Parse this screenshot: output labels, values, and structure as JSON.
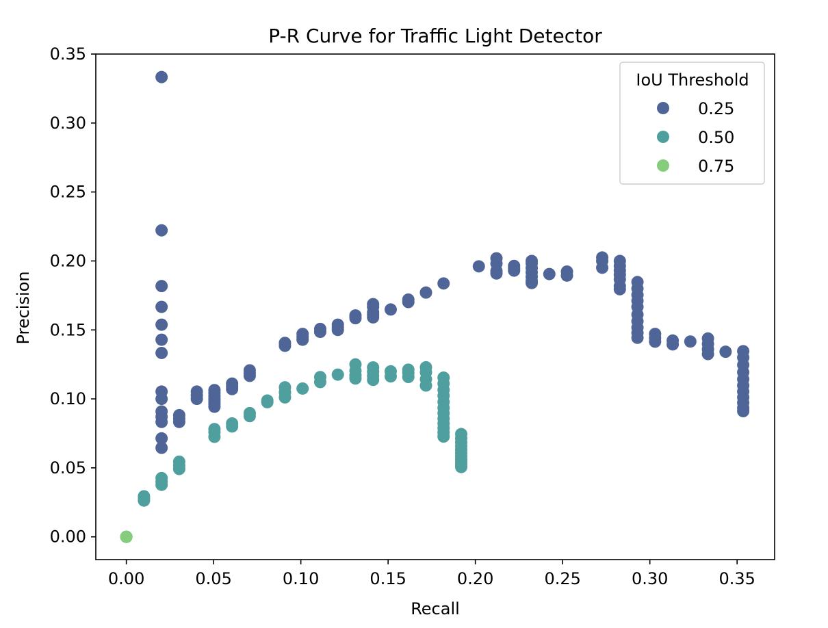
{
  "chart_data": {
    "type": "scatter",
    "title": "P-R Curve for Traffic Light Detector",
    "xlabel": "Recall",
    "ylabel": "Precision",
    "xlim": [
      -0.0175,
      0.3715
    ],
    "ylim": [
      -0.0165,
      0.35
    ],
    "xticks": [
      "0.00",
      "0.05",
      "0.10",
      "0.15",
      "0.20",
      "0.25",
      "0.30",
      "0.35"
    ],
    "yticks": [
      "0.00",
      "0.05",
      "0.10",
      "0.15",
      "0.20",
      "0.25",
      "0.30",
      "0.35"
    ],
    "grid": false,
    "legend": {
      "title": "IoU Threshold",
      "placement": "top-right",
      "entries": [
        "0.25",
        "0.50",
        "0.75"
      ]
    },
    "series": [
      {
        "name": "0.25",
        "color": "#4f6597",
        "points": [
          [
            0.0,
            0.0
          ],
          [
            0.0202,
            0.3333
          ],
          [
            0.0202,
            0.2222
          ],
          [
            0.0202,
            0.1818
          ],
          [
            0.0202,
            0.1667
          ],
          [
            0.0202,
            0.1538
          ],
          [
            0.0202,
            0.1429
          ],
          [
            0.0202,
            0.1333
          ],
          [
            0.0202,
            0.1053
          ],
          [
            0.0202,
            0.1
          ],
          [
            0.0202,
            0.0909
          ],
          [
            0.0202,
            0.087
          ],
          [
            0.0202,
            0.0833
          ],
          [
            0.0202,
            0.0714
          ],
          [
            0.0202,
            0.0645
          ],
          [
            0.0303,
            0.0882
          ],
          [
            0.0303,
            0.0857
          ],
          [
            0.0303,
            0.0833
          ],
          [
            0.0404,
            0.1053
          ],
          [
            0.0404,
            0.1026
          ],
          [
            0.0404,
            0.1
          ],
          [
            0.0505,
            0.1064
          ],
          [
            0.0505,
            0.1042
          ],
          [
            0.0505,
            0.102
          ],
          [
            0.0505,
            0.1
          ],
          [
            0.0505,
            0.098
          ],
          [
            0.0505,
            0.0962
          ],
          [
            0.0505,
            0.0943
          ],
          [
            0.0606,
            0.1111
          ],
          [
            0.0606,
            0.1091
          ],
          [
            0.0606,
            0.1071
          ],
          [
            0.0707,
            0.1207
          ],
          [
            0.0707,
            0.1186
          ],
          [
            0.0707,
            0.1167
          ],
          [
            0.0909,
            0.1406
          ],
          [
            0.0909,
            0.1385
          ],
          [
            0.101,
            0.1471
          ],
          [
            0.101,
            0.1449
          ],
          [
            0.101,
            0.1429
          ],
          [
            0.1111,
            0.1507
          ],
          [
            0.1111,
            0.1486
          ],
          [
            0.1212,
            0.1538
          ],
          [
            0.1212,
            0.1519
          ],
          [
            0.1212,
            0.15
          ],
          [
            0.1313,
            0.1605
          ],
          [
            0.1313,
            0.1585
          ],
          [
            0.1414,
            0.1687
          ],
          [
            0.1414,
            0.1667
          ],
          [
            0.1414,
            0.1628
          ],
          [
            0.1414,
            0.1609
          ],
          [
            0.1414,
            0.1591
          ],
          [
            0.1515,
            0.1648
          ],
          [
            0.1616,
            0.172
          ],
          [
            0.1616,
            0.1702
          ],
          [
            0.1717,
            0.1771
          ],
          [
            0.1818,
            0.1837
          ],
          [
            0.202,
            0.1961
          ],
          [
            0.2121,
            0.2019
          ],
          [
            0.2121,
            0.1981
          ],
          [
            0.2121,
            0.1927
          ],
          [
            0.2121,
            0.1909
          ],
          [
            0.2222,
            0.1964
          ],
          [
            0.2222,
            0.1947
          ],
          [
            0.2222,
            0.193
          ],
          [
            0.2323,
            0.2
          ],
          [
            0.2323,
            0.1983
          ],
          [
            0.2323,
            0.1949
          ],
          [
            0.2323,
            0.1917
          ],
          [
            0.2323,
            0.1885
          ],
          [
            0.2323,
            0.1855
          ],
          [
            0.2323,
            0.184
          ],
          [
            0.2424,
            0.1905
          ],
          [
            0.2525,
            0.1923
          ],
          [
            0.2525,
            0.1894
          ],
          [
            0.2727,
            0.2025
          ],
          [
            0.2727,
            0.2
          ],
          [
            0.2727,
            0.1951
          ],
          [
            0.2828,
            0.2
          ],
          [
            0.2828,
            0.1964
          ],
          [
            0.2828,
            0.1931
          ],
          [
            0.2828,
            0.19
          ],
          [
            0.2828,
            0.1867
          ],
          [
            0.2828,
            0.1818
          ],
          [
            0.2828,
            0.1795
          ],
          [
            0.2929,
            0.1847
          ],
          [
            0.2929,
            0.18
          ],
          [
            0.2929,
            0.1754
          ],
          [
            0.2929,
            0.1711
          ],
          [
            0.2929,
            0.1667
          ],
          [
            0.2929,
            0.1611
          ],
          [
            0.2929,
            0.1563
          ],
          [
            0.2929,
            0.1517
          ],
          [
            0.2929,
            0.1479
          ],
          [
            0.2929,
            0.1443
          ],
          [
            0.303,
            0.1471
          ],
          [
            0.303,
            0.1442
          ],
          [
            0.303,
            0.1415
          ],
          [
            0.3131,
            0.1423
          ],
          [
            0.3131,
            0.1395
          ],
          [
            0.3232,
            0.1416
          ],
          [
            0.3333,
            0.1438
          ],
          [
            0.3333,
            0.1398
          ],
          [
            0.3333,
            0.136
          ],
          [
            0.3333,
            0.1325
          ],
          [
            0.3434,
            0.1342
          ],
          [
            0.3535,
            0.1346
          ],
          [
            0.3535,
            0.13
          ],
          [
            0.3535,
            0.1246
          ],
          [
            0.3535,
            0.1193
          ],
          [
            0.3535,
            0.1143
          ],
          [
            0.3535,
            0.1097
          ],
          [
            0.3535,
            0.1053
          ],
          [
            0.3535,
            0.1011
          ],
          [
            0.3535,
            0.0972
          ],
          [
            0.3535,
            0.0935
          ],
          [
            0.3535,
            0.0911
          ]
        ]
      },
      {
        "name": "0.50",
        "color": "#4e9f9d",
        "points": [
          [
            0.0,
            0.0
          ],
          [
            0.0101,
            0.0294
          ],
          [
            0.0101,
            0.0278
          ],
          [
            0.0101,
            0.0263
          ],
          [
            0.0202,
            0.0426
          ],
          [
            0.0202,
            0.04
          ],
          [
            0.0202,
            0.0377
          ],
          [
            0.0303,
            0.0545
          ],
          [
            0.0303,
            0.0517
          ],
          [
            0.0303,
            0.0492
          ],
          [
            0.0505,
            0.0781
          ],
          [
            0.0505,
            0.0758
          ],
          [
            0.0505,
            0.0725
          ],
          [
            0.0606,
            0.0822
          ],
          [
            0.0606,
            0.08
          ],
          [
            0.0707,
            0.0897
          ],
          [
            0.0707,
            0.0875
          ],
          [
            0.0808,
            0.0988
          ],
          [
            0.0808,
            0.0976
          ],
          [
            0.0909,
            0.1084
          ],
          [
            0.0909,
            0.1047
          ],
          [
            0.0909,
            0.1011
          ],
          [
            0.101,
            0.1075
          ],
          [
            0.1111,
            0.1158
          ],
          [
            0.1111,
            0.1122
          ],
          [
            0.1212,
            0.1176
          ],
          [
            0.1313,
            0.125
          ],
          [
            0.1313,
            0.1204
          ],
          [
            0.1313,
            0.1171
          ],
          [
            0.1313,
            0.1148
          ],
          [
            0.1414,
            0.1228
          ],
          [
            0.1414,
            0.1197
          ],
          [
            0.1414,
            0.1167
          ],
          [
            0.1414,
            0.1138
          ],
          [
            0.1515,
            0.12
          ],
          [
            0.1515,
            0.1163
          ],
          [
            0.1616,
            0.1212
          ],
          [
            0.1616,
            0.1187
          ],
          [
            0.1616,
            0.1159
          ],
          [
            0.1717,
            0.1229
          ],
          [
            0.1717,
            0.1193
          ],
          [
            0.1717,
            0.1143
          ],
          [
            0.1717,
            0.1097
          ],
          [
            0.1818,
            0.1154
          ],
          [
            0.1818,
            0.1111
          ],
          [
            0.1818,
            0.1065
          ],
          [
            0.1818,
            0.1023
          ],
          [
            0.1818,
            0.0978
          ],
          [
            0.1818,
            0.0935
          ],
          [
            0.1818,
            0.0896
          ],
          [
            0.1818,
            0.0857
          ],
          [
            0.1818,
            0.0822
          ],
          [
            0.1818,
            0.0789
          ],
          [
            0.1818,
            0.0757
          ],
          [
            0.1818,
            0.0727
          ],
          [
            0.1919,
            0.0745
          ],
          [
            0.1919,
            0.0714
          ],
          [
            0.1919,
            0.0685
          ],
          [
            0.1919,
            0.0657
          ],
          [
            0.1919,
            0.0632
          ],
          [
            0.1919,
            0.0608
          ],
          [
            0.1919,
            0.0585
          ],
          [
            0.1919,
            0.0563
          ],
          [
            0.1919,
            0.0543
          ],
          [
            0.1919,
            0.0524
          ],
          [
            0.1919,
            0.0506
          ]
        ]
      },
      {
        "name": "0.75",
        "color": "#86cc7d",
        "points": [
          [
            0.0,
            0.0
          ]
        ]
      }
    ]
  }
}
